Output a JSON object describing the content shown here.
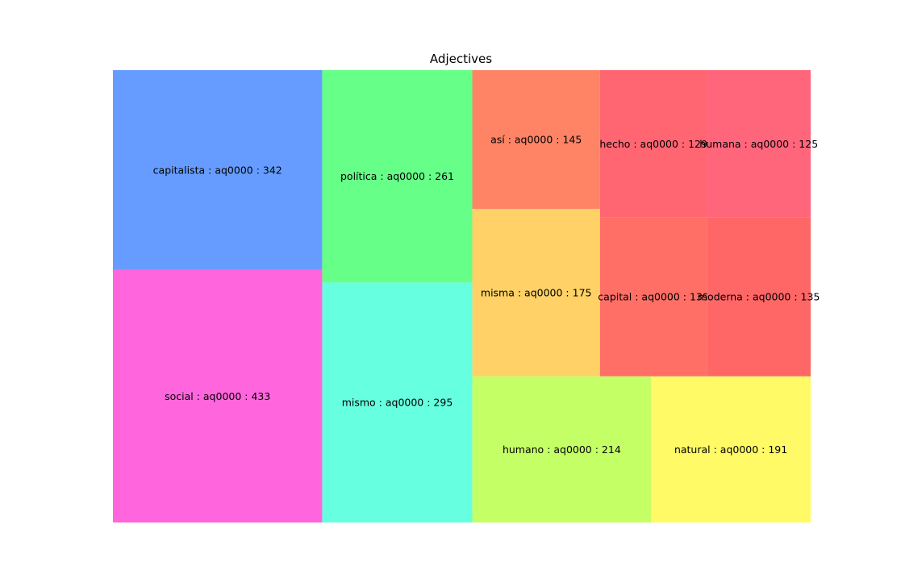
{
  "chart_data": {
    "type": "treemap",
    "title": "Adjectives",
    "items": [
      {
        "label": "social : aq0000 : 433",
        "word": "social",
        "tag": "aq0000",
        "value": 433,
        "color": "#ff66dd"
      },
      {
        "label": "capitalista : aq0000 : 342",
        "word": "capitalista",
        "tag": "aq0000",
        "value": 342,
        "color": "#669cff"
      },
      {
        "label": "mismo : aq0000 : 295",
        "word": "mismo",
        "tag": "aq0000",
        "value": 295,
        "color": "#66ffe0"
      },
      {
        "label": "política : aq0000 : 261",
        "word": "política",
        "tag": "aq0000",
        "value": 261,
        "color": "#66ff88"
      },
      {
        "label": "humano : aq0000 : 214",
        "word": "humano",
        "tag": "aq0000",
        "value": 214,
        "color": "#c4ff66"
      },
      {
        "label": "natural : aq0000 : 191",
        "word": "natural",
        "tag": "aq0000",
        "value": 191,
        "color": "#fffa66"
      },
      {
        "label": "misma : aq0000 : 175",
        "word": "misma",
        "tag": "aq0000",
        "value": 175,
        "color": "#ffd166"
      },
      {
        "label": "así : aq0000 : 145",
        "word": "así",
        "tag": "aq0000",
        "value": 145,
        "color": "#ff8466"
      },
      {
        "label": "capital : aq0000 : 139",
        "word": "capital",
        "tag": "aq0000",
        "value": 139,
        "color": "#ff6f66"
      },
      {
        "label": "moderna : aq0000 : 135",
        "word": "moderna",
        "tag": "aq0000",
        "value": 135,
        "color": "#ff6666"
      },
      {
        "label": "hecho : aq0000 : 129",
        "word": "hecho",
        "tag": "aq0000",
        "value": 129,
        "color": "#ff6672"
      },
      {
        "label": "humana : aq0000 : 125",
        "word": "humana",
        "tag": "aq0000",
        "value": 125,
        "color": "#ff667c"
      }
    ]
  }
}
